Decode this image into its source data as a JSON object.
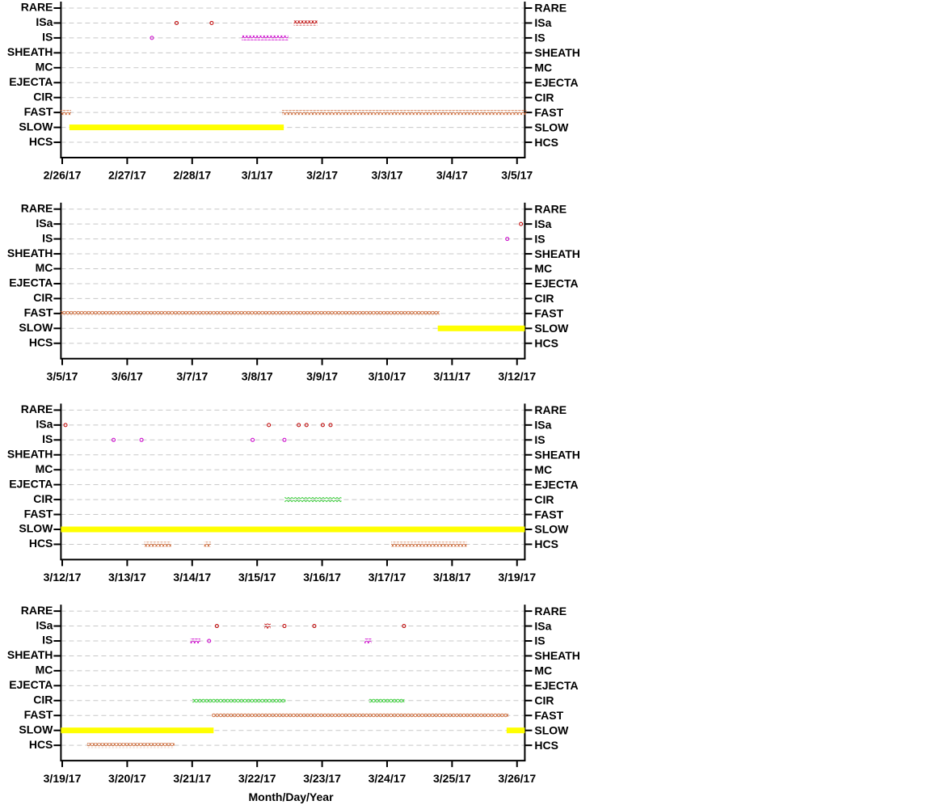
{
  "chart_data": [
    {
      "type": "event-timeline",
      "categories": [
        "RARE",
        "ISa",
        "IS",
        "SHEATH",
        "MC",
        "EJECTA",
        "CIR",
        "FAST",
        "SLOW",
        "HCS"
      ],
      "xlim": [
        -0.02,
        7.12
      ],
      "xticks": [
        {
          "value": 0,
          "label": "2/26/17"
        },
        {
          "value": 1,
          "label": "2/27/17"
        },
        {
          "value": 2,
          "label": "2/28/17"
        },
        {
          "value": 3,
          "label": "3/1/17"
        },
        {
          "value": 4,
          "label": "3/2/17"
        },
        {
          "value": 5,
          "label": "3/3/17"
        },
        {
          "value": 6,
          "label": "3/4/17"
        },
        {
          "value": 7,
          "label": "3/5/17"
        }
      ],
      "grid": true,
      "series": [
        {
          "name": "ISa",
          "color": "#c00000",
          "marker": "open",
          "points": [
            1.76,
            2.3
          ],
          "intervals": [
            [
              3.59,
              3.9
            ]
          ]
        },
        {
          "name": "IS",
          "color": "#cc00cc",
          "marker": "open",
          "points": [
            1.38
          ],
          "intervals": [
            [
              2.79,
              3.45
            ]
          ]
        },
        {
          "name": "FAST",
          "color": "#cc6633",
          "marker": "open",
          "points": [],
          "intervals": [
            [
              0,
              0.11
            ],
            [
              3.41,
              7.12
            ]
          ]
        },
        {
          "name": "SLOW",
          "color": "#ffff00",
          "marker": "filled",
          "points": [],
          "intervals": [
            [
              0.11,
              3.41
            ]
          ]
        }
      ]
    },
    {
      "type": "event-timeline",
      "categories": [
        "RARE",
        "ISa",
        "IS",
        "SHEATH",
        "MC",
        "EJECTA",
        "CIR",
        "FAST",
        "SLOW",
        "HCS"
      ],
      "xlim": [
        -0.02,
        7.12
      ],
      "xticks": [
        {
          "value": 0,
          "label": "3/5/17"
        },
        {
          "value": 1,
          "label": "3/6/17"
        },
        {
          "value": 2,
          "label": "3/7/17"
        },
        {
          "value": 3,
          "label": "3/8/17"
        },
        {
          "value": 4,
          "label": "3/9/17"
        },
        {
          "value": 5,
          "label": "3/10/17"
        },
        {
          "value": 6,
          "label": "3/11/17"
        },
        {
          "value": 7,
          "label": "3/12/17"
        }
      ],
      "grid": true,
      "series": [
        {
          "name": "ISa",
          "color": "#c00000",
          "marker": "open",
          "points": [
            7.06
          ],
          "intervals": []
        },
        {
          "name": "IS",
          "color": "#cc00cc",
          "marker": "open",
          "points": [
            6.85
          ],
          "intervals": []
        },
        {
          "name": "FAST",
          "color": "#cc6633",
          "marker": "open",
          "points": [],
          "intervals": [
            [
              0,
              5.78
            ]
          ]
        },
        {
          "name": "SLOW",
          "color": "#ffff00",
          "marker": "filled",
          "points": [],
          "intervals": [
            [
              5.78,
              7.12
            ]
          ]
        }
      ]
    },
    {
      "type": "event-timeline",
      "categories": [
        "RARE",
        "ISa",
        "IS",
        "SHEATH",
        "MC",
        "EJECTA",
        "CIR",
        "FAST",
        "SLOW",
        "HCS"
      ],
      "xlim": [
        -0.02,
        7.12
      ],
      "xticks": [
        {
          "value": 0,
          "label": "3/12/17"
        },
        {
          "value": 1,
          "label": "3/13/17"
        },
        {
          "value": 2,
          "label": "3/14/17"
        },
        {
          "value": 3,
          "label": "3/15/17"
        },
        {
          "value": 4,
          "label": "3/16/17"
        },
        {
          "value": 5,
          "label": "3/17/17"
        },
        {
          "value": 6,
          "label": "3/18/17"
        },
        {
          "value": 7,
          "label": "3/19/17"
        }
      ],
      "grid": true,
      "series": [
        {
          "name": "ISa",
          "color": "#c00000",
          "marker": "open",
          "points": [
            0.05,
            3.18,
            3.64,
            3.76,
            4.01,
            4.13
          ],
          "intervals": []
        },
        {
          "name": "IS",
          "color": "#cc00cc",
          "marker": "open",
          "points": [
            0.79,
            1.22,
            2.93,
            3.42
          ],
          "intervals": []
        },
        {
          "name": "CIR",
          "color": "#33cc33",
          "marker": "open",
          "points": [],
          "intervals": [
            [
              3.45,
              4.27
            ]
          ]
        },
        {
          "name": "SLOW",
          "color": "#ffff00",
          "marker": "filled",
          "points": [],
          "intervals": [
            [
              -0.02,
              7.12
            ]
          ]
        },
        {
          "name": "HCS",
          "color": "#cc6633",
          "marker": "open",
          "points": [],
          "intervals": [
            [
              1.29,
              1.65
            ],
            [
              2.21,
              2.26
            ],
            [
              5.09,
              6.2
            ]
          ]
        }
      ]
    },
    {
      "type": "event-timeline",
      "categories": [
        "RARE",
        "ISa",
        "IS",
        "SHEATH",
        "MC",
        "EJECTA",
        "CIR",
        "FAST",
        "SLOW",
        "HCS"
      ],
      "xlim": [
        -0.02,
        7.12
      ],
      "xticks": [
        {
          "value": 0,
          "label": "3/19/17"
        },
        {
          "value": 1,
          "label": "3/20/17"
        },
        {
          "value": 2,
          "label": "3/21/17"
        },
        {
          "value": 3,
          "label": "3/22/17"
        },
        {
          "value": 4,
          "label": "3/23/17"
        },
        {
          "value": 5,
          "label": "3/24/17"
        },
        {
          "value": 6,
          "label": "3/25/17"
        },
        {
          "value": 7,
          "label": "3/26/17"
        }
      ],
      "grid": true,
      "xlabel": "Month/Day/Year",
      "series": [
        {
          "name": "ISa",
          "color": "#c00000",
          "marker": "open",
          "points": [
            2.38,
            3.42,
            3.88,
            5.26
          ],
          "intervals": [
            [
              3.14,
              3.18
            ]
          ]
        },
        {
          "name": "IS",
          "color": "#cc00cc",
          "marker": "open",
          "points": [
            2.26
          ],
          "intervals": [
            [
              2.0,
              2.1
            ],
            [
              4.68,
              4.73
            ]
          ]
        },
        {
          "name": "CIR",
          "color": "#33cc33",
          "marker": "open",
          "points": [],
          "intervals": [
            [
              2.03,
              3.41
            ],
            [
              4.75,
              5.24
            ]
          ]
        },
        {
          "name": "FAST",
          "color": "#cc6633",
          "marker": "open",
          "points": [],
          "intervals": [
            [
              2.33,
              6.84
            ]
          ]
        },
        {
          "name": "SLOW",
          "color": "#ffff00",
          "marker": "filled",
          "points": [],
          "intervals": [
            [
              -0.02,
              2.33
            ],
            [
              6.84,
              7.12
            ]
          ]
        },
        {
          "name": "HCS",
          "color": "#cc6633",
          "marker": "open",
          "points": [],
          "intervals": [
            [
              0.41,
              1.7
            ]
          ]
        }
      ]
    }
  ]
}
